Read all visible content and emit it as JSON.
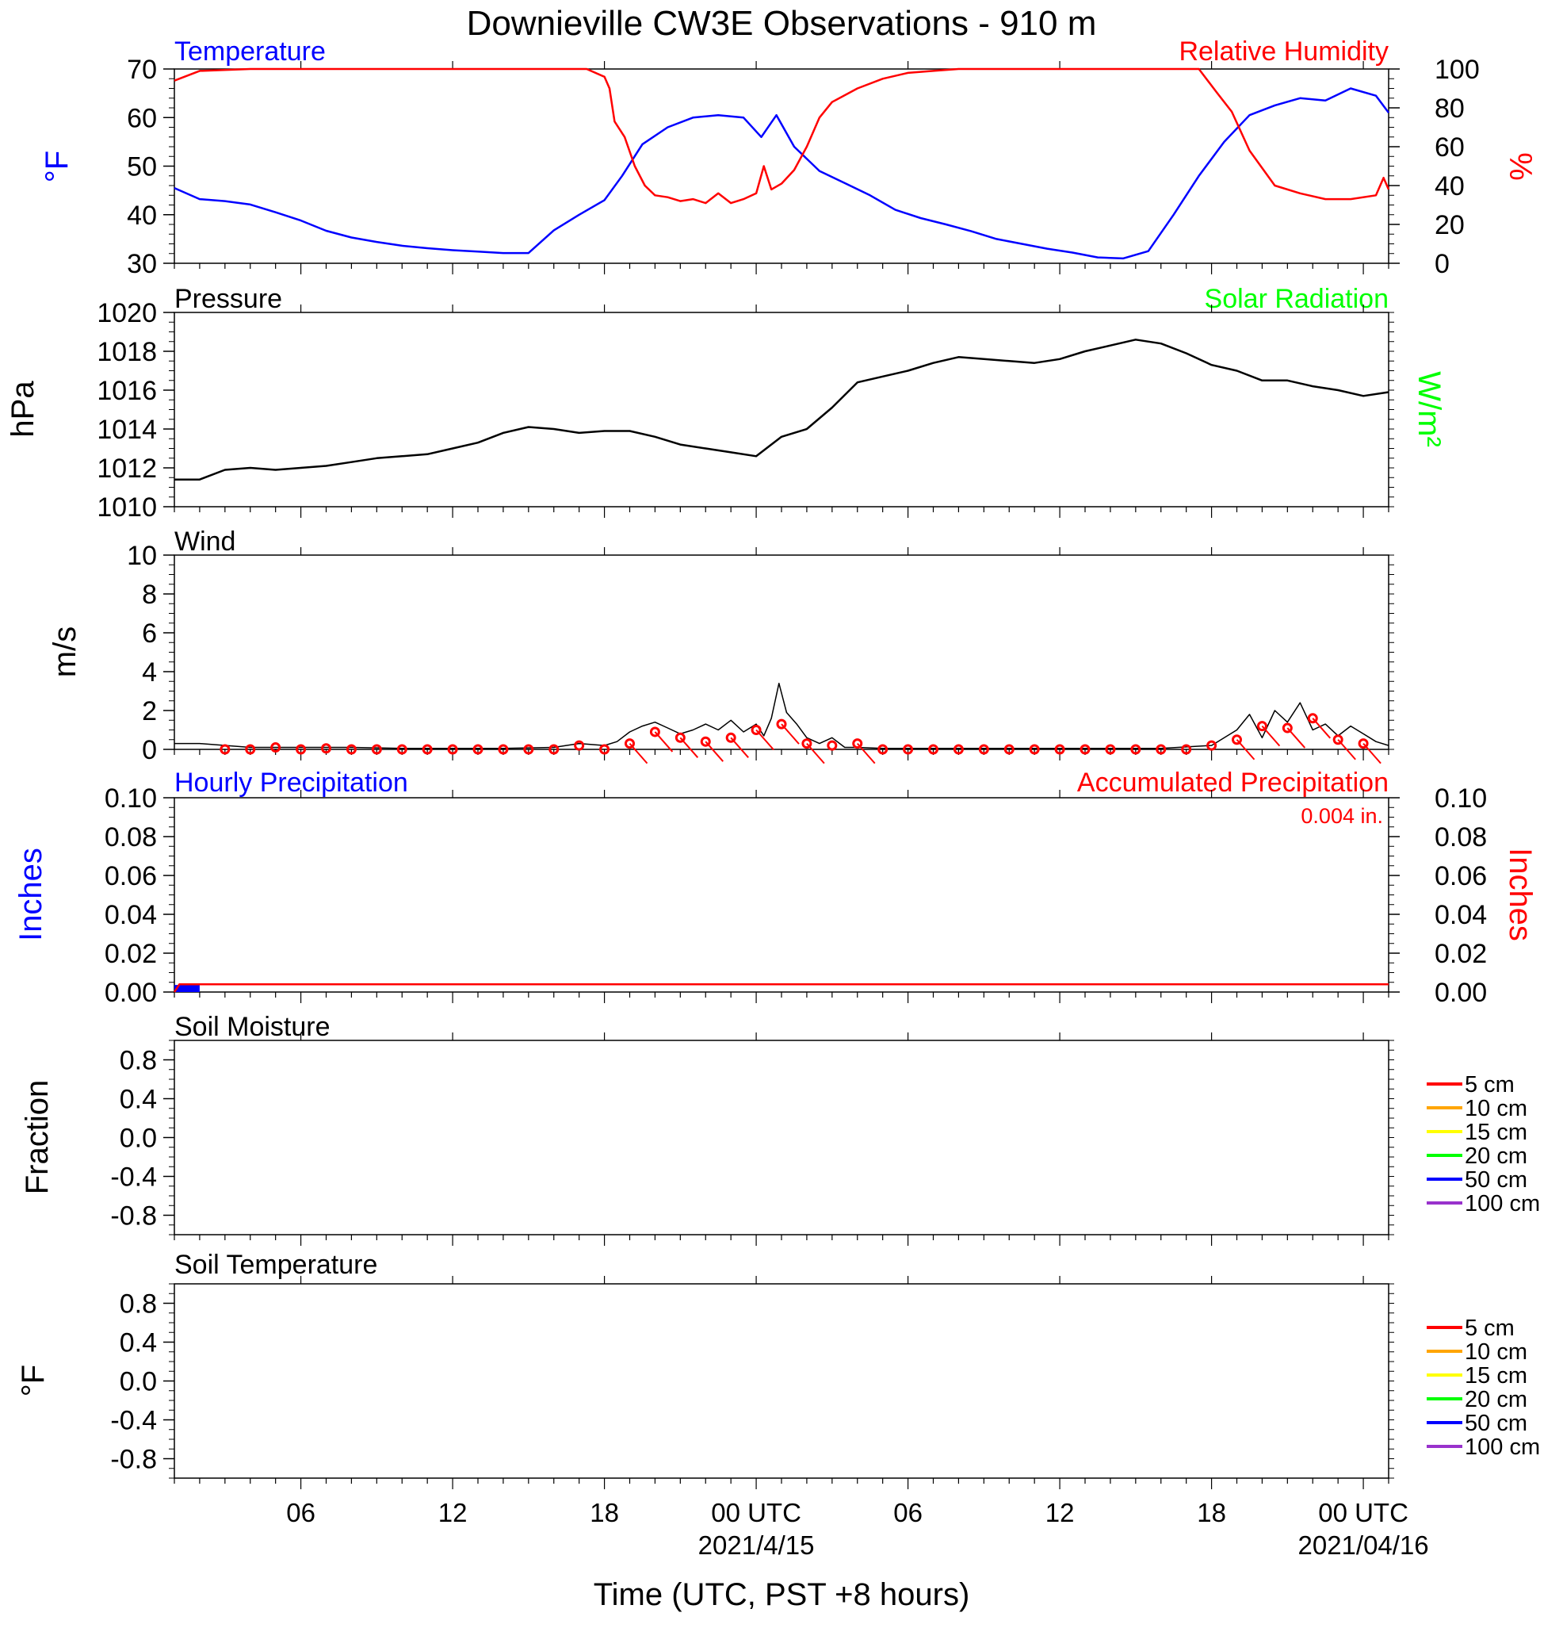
{
  "title": "Downieville CW3E Observations - 910 m",
  "xlabel": "Time (UTC, PST +8 hours)",
  "xticks": [
    {
      "h": 6,
      "label": "06",
      "date": ""
    },
    {
      "h": 12,
      "label": "12",
      "date": ""
    },
    {
      "h": 18,
      "label": "18",
      "date": ""
    },
    {
      "h": 24,
      "label": "00 UTC",
      "date": "2021/4/15"
    },
    {
      "h": 30,
      "label": "06",
      "date": ""
    },
    {
      "h": 36,
      "label": "12",
      "date": ""
    },
    {
      "h": 42,
      "label": "18",
      "date": ""
    },
    {
      "h": 48,
      "label": "00 UTC",
      "date": "2021/04/16"
    }
  ],
  "xrange_hours": [
    1,
    49
  ],
  "colors": {
    "temperature": "#0000ff",
    "humidity": "#ff0000",
    "pressure": "#000000",
    "solar": "#00ff00",
    "wind": "#000000",
    "barbs": "#ff0000",
    "hourly": "#0000ff",
    "accum": "#ff0000"
  },
  "chart_data": [
    {
      "id": "temp_rh",
      "type": "line",
      "left_title": "Temperature",
      "right_title": "Relative Humidity",
      "ylabel_left": "°F",
      "ylabel_right": "%",
      "ylim_left": [
        30,
        70
      ],
      "yticks_left": [
        "30",
        "40",
        "50",
        "60",
        "70"
      ],
      "ylim_right": [
        0,
        100
      ],
      "yticks_right": [
        "0",
        "20",
        "40",
        "60",
        "80",
        "100"
      ],
      "series": [
        {
          "name": "Temperature",
          "axis": "left",
          "x": [
            1,
            2,
            3,
            4,
            5,
            6,
            7,
            8,
            9,
            10,
            11,
            12,
            13,
            14,
            15,
            16,
            17,
            18,
            18.7,
            19.5,
            20.5,
            21.5,
            22.5,
            23.5,
            24.2,
            24.8,
            25.5,
            26.5,
            27.5,
            28.5,
            29.5,
            30.5,
            31.5,
            32.5,
            33.5,
            34.5,
            35.5,
            36.5,
            37.5,
            38.5,
            39.5,
            40.5,
            41.5,
            42.5,
            43.5,
            44.5,
            45.5,
            46.5,
            47.5,
            48.5,
            49
          ],
          "y": [
            45.5,
            43.2,
            42.8,
            42.1,
            40.5,
            38.8,
            36.7,
            35.3,
            34.4,
            33.6,
            33.1,
            32.7,
            32.4,
            32.1,
            32.1,
            36.8,
            40.0,
            43.0,
            48.0,
            54.5,
            58.0,
            60.0,
            60.5,
            60.0,
            56.0,
            60.5,
            54.0,
            49.0,
            46.5,
            44.0,
            41.0,
            39.3,
            38.0,
            36.6,
            35.0,
            34.0,
            33.0,
            32.2,
            31.2,
            31.0,
            32.5,
            40.0,
            48.0,
            55.0,
            60.5,
            62.5,
            64.0,
            63.5,
            66.0,
            64.5,
            61.0
          ]
        },
        {
          "name": "Relative Humidity",
          "axis": "right",
          "x": [
            1,
            2,
            4,
            8,
            12,
            16,
            17.3,
            18,
            18.2,
            18.4,
            18.8,
            19.2,
            19.6,
            20,
            20.5,
            21,
            21.5,
            22,
            22.5,
            23,
            23.5,
            24,
            24.3,
            24.6,
            25,
            25.5,
            26,
            26.5,
            27,
            28,
            29,
            30,
            31,
            32,
            34,
            38,
            41.5,
            42.2,
            42.8,
            43.5,
            44.5,
            45.5,
            46.5,
            47.5,
            48.5,
            48.8,
            49
          ],
          "y": [
            94,
            99,
            100,
            100,
            100,
            100,
            100,
            96,
            90,
            73,
            65,
            50,
            40,
            35,
            34,
            32,
            33,
            31,
            36,
            31,
            33,
            36,
            50,
            38,
            41,
            48,
            60,
            75,
            83,
            90,
            95,
            98,
            99,
            100,
            100,
            100,
            100,
            88,
            78,
            58,
            40,
            36,
            33,
            33,
            35,
            44,
            38
          ]
        }
      ]
    },
    {
      "id": "pressure",
      "type": "line",
      "left_title": "Pressure",
      "right_title": "Solar Radiation",
      "ylabel_left": "hPa",
      "ylabel_right": "W/m²",
      "ylim_left": [
        1010,
        1020
      ],
      "yticks_left": [
        "1010",
        "1012",
        "1014",
        "1016",
        "1018",
        "1020"
      ],
      "series": [
        {
          "name": "Pressure",
          "axis": "left",
          "x": [
            1,
            2,
            3,
            4,
            5,
            6,
            7,
            8,
            9,
            10,
            11,
            12,
            13,
            14,
            15,
            16,
            17,
            18,
            19,
            20,
            21,
            22,
            23,
            24,
            25,
            26,
            27,
            28,
            29,
            30,
            31,
            32,
            33,
            34,
            35,
            36,
            37,
            38,
            39,
            40,
            41,
            42,
            43,
            44,
            45,
            46,
            47,
            48,
            49
          ],
          "y": [
            1011.4,
            1011.4,
            1011.9,
            1012.0,
            1011.9,
            1012.0,
            1012.1,
            1012.3,
            1012.5,
            1012.6,
            1012.7,
            1013.0,
            1013.3,
            1013.8,
            1014.1,
            1014.0,
            1013.8,
            1013.9,
            1013.9,
            1013.6,
            1013.2,
            1013.0,
            1012.8,
            1012.6,
            1013.6,
            1014.0,
            1015.1,
            1016.4,
            1016.7,
            1017.0,
            1017.4,
            1017.7,
            1017.6,
            1017.5,
            1017.4,
            1017.6,
            1018.0,
            1018.3,
            1018.6,
            1018.4,
            1017.9,
            1017.3,
            1017.0,
            1016.5,
            1016.5,
            1016.2,
            1016.0,
            1015.7,
            1015.9
          ]
        }
      ]
    },
    {
      "id": "wind",
      "type": "line",
      "left_title": "Wind",
      "ylabel_left": "m/s",
      "ylim_left": [
        0,
        10
      ],
      "yticks_left": [
        "0",
        "2",
        "4",
        "6",
        "8",
        "10"
      ],
      "series": [
        {
          "name": "Wind speed",
          "axis": "left",
          "x": [
            1,
            2,
            4,
            6,
            8,
            10,
            12,
            14,
            16,
            17,
            18,
            18.5,
            19,
            19.5,
            20,
            20.5,
            21,
            21.5,
            22,
            22.5,
            23,
            23.5,
            24,
            24.3,
            24.6,
            24.9,
            25.2,
            25.6,
            26,
            26.5,
            27,
            27.5,
            28,
            29,
            32,
            36,
            40,
            42,
            43,
            43.5,
            44,
            44.5,
            45,
            45.5,
            46,
            46.5,
            47,
            47.5,
            48,
            48.5,
            49
          ],
          "y": [
            0.3,
            0.3,
            0.1,
            0.1,
            0.1,
            0.05,
            0.05,
            0.05,
            0.1,
            0.3,
            0.2,
            0.4,
            0.9,
            1.2,
            1.4,
            1.1,
            0.8,
            1.0,
            1.3,
            1.0,
            1.5,
            0.9,
            1.3,
            0.7,
            1.6,
            3.4,
            1.9,
            1.3,
            0.6,
            0.3,
            0.6,
            0.1,
            0.1,
            0.05,
            0.05,
            0.05,
            0.05,
            0.2,
            1.0,
            1.8,
            0.6,
            2.0,
            1.4,
            2.4,
            1.0,
            1.3,
            0.7,
            1.2,
            0.8,
            0.4,
            0.2
          ]
        },
        {
          "name": "Wind barbs",
          "axis": "left",
          "x": [
            3,
            4,
            5,
            6,
            7,
            8,
            9,
            10,
            11,
            12,
            13,
            14,
            15,
            16,
            17,
            18,
            19,
            20,
            21,
            22,
            23,
            24,
            25,
            26,
            27,
            28,
            29,
            30,
            31,
            32,
            33,
            34,
            35,
            36,
            37,
            38,
            39,
            40,
            41,
            42,
            43,
            44,
            45,
            46,
            47,
            48
          ],
          "y": [
            0,
            0,
            0.1,
            0,
            0.05,
            0,
            0,
            0,
            0,
            0,
            0,
            0,
            0,
            0,
            0.2,
            0,
            0.3,
            0.9,
            0.6,
            0.4,
            0.6,
            1.0,
            1.3,
            0.3,
            0.2,
            0.3,
            0,
            0,
            0,
            0,
            0,
            0,
            0,
            0,
            0,
            0,
            0,
            0,
            0,
            0.2,
            0.5,
            1.2,
            1.1,
            1.6,
            0.5,
            0.3
          ]
        }
      ]
    },
    {
      "id": "precip",
      "type": "line",
      "left_title": "Hourly Precipitation",
      "right_title": "Accumulated Precipitation",
      "annotation": "0.004 in.",
      "ylabel_left": "Inches",
      "ylabel_right": "Inches",
      "ylim_left": [
        0,
        0.1
      ],
      "yticks_left": [
        "0.00",
        "0.02",
        "0.04",
        "0.06",
        "0.08",
        "0.10"
      ],
      "ylim_right": [
        0,
        0.1
      ],
      "yticks_right": [
        "0.00",
        "0.02",
        "0.04",
        "0.06",
        "0.08",
        "0.10"
      ],
      "series": [
        {
          "name": "Hourly Precipitation",
          "axis": "left",
          "x": [
            1,
            2
          ],
          "y": [
            0.002,
            0.002
          ]
        },
        {
          "name": "Accumulated Precipitation",
          "axis": "right",
          "x": [
            1,
            1.2,
            49
          ],
          "y": [
            0.0,
            0.004,
            0.004
          ]
        }
      ]
    },
    {
      "id": "soil_moisture",
      "type": "line",
      "left_title": "Soil Moisture",
      "ylabel_left": "Fraction",
      "ylim_left": [
        -1,
        1
      ],
      "yticks_left": [
        "-0.8",
        "-0.4",
        "0.0",
        "0.4",
        "0.8"
      ],
      "legend": [
        "5 cm",
        "10 cm",
        "15 cm",
        "20 cm",
        "50 cm",
        "100 cm"
      ],
      "series": []
    },
    {
      "id": "soil_temperature",
      "type": "line",
      "left_title": "Soil Temperature",
      "ylabel_left": "°F",
      "ylim_left": [
        -1,
        1
      ],
      "yticks_left": [
        "-0.8",
        "-0.4",
        "0.0",
        "0.4",
        "0.8"
      ],
      "legend": [
        "5 cm",
        "10 cm",
        "15 cm",
        "20 cm",
        "50 cm",
        "100 cm"
      ],
      "series": []
    }
  ],
  "legend_colors": [
    "#ff0000",
    "#ffa500",
    "#ffff00",
    "#00ff00",
    "#0000ff",
    "#9932cc"
  ]
}
